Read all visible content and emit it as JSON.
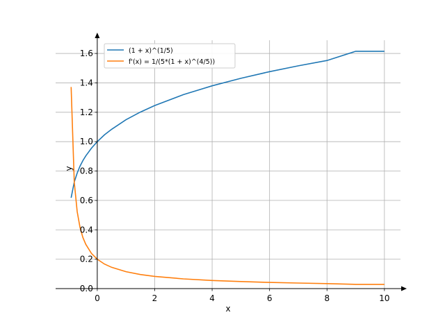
{
  "chart_data": {
    "type": "line",
    "title": "",
    "xlabel": "x",
    "ylabel": "y",
    "xlim": [
      -1.45,
      10.56
    ],
    "ylim": [
      0,
      1.69
    ],
    "grid": true,
    "legend_position": "top-left",
    "xticks": [
      0,
      2,
      4,
      6,
      8,
      10
    ],
    "xtick_labels": [
      "0",
      "2",
      "4",
      "6",
      "8",
      "10"
    ],
    "yticks": [
      0,
      0.2,
      0.4,
      0.6,
      0.8,
      1.0,
      1.2,
      1.4,
      1.6
    ],
    "ytick_labels": [
      "0.0",
      "0.2",
      "0.4",
      "0.6",
      "0.8",
      "1.0",
      "1.2",
      "1.4",
      "1.6"
    ],
    "x": [
      -0.91,
      -0.8,
      -0.7,
      -0.6,
      -0.5,
      -0.4,
      -0.2,
      0,
      0.25,
      0.5,
      1,
      1.5,
      2,
      3,
      4,
      5,
      6,
      7,
      8,
      9,
      10
    ],
    "series": [
      {
        "name": "(1 + x)^(1/5)",
        "color": "#1f77b4",
        "values": [
          0.618,
          0.725,
          0.786,
          0.833,
          0.871,
          0.903,
          0.956,
          1.0,
          1.046,
          1.084,
          1.149,
          1.201,
          1.246,
          1.32,
          1.38,
          1.431,
          1.476,
          1.516,
          1.552,
          1.615,
          1.615
        ]
      },
      {
        "name": "f'(x) = 1/(5*(1 + x)^(4/5))",
        "color": "#ff7f0e",
        "values": [
          1.372,
          0.725,
          0.524,
          0.416,
          0.348,
          0.301,
          0.239,
          0.2,
          0.167,
          0.145,
          0.115,
          0.096,
          0.083,
          0.066,
          0.055,
          0.048,
          0.042,
          0.038,
          0.034,
          0.029,
          0.029
        ]
      }
    ]
  }
}
